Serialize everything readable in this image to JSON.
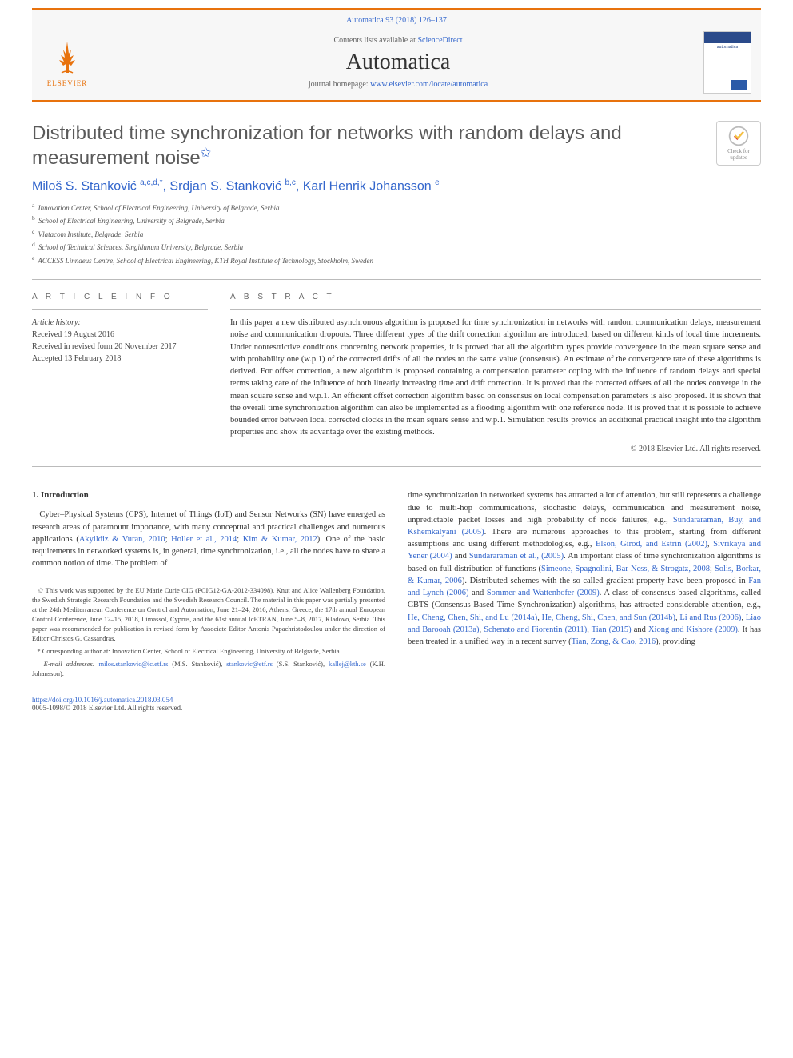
{
  "header": {
    "journal_ref": "Automatica 93 (2018) 126–137",
    "contents_prefix": "Contents lists available at ",
    "contents_link": "ScienceDirect",
    "journal_name": "Automatica",
    "homepage_prefix": "journal homepage: ",
    "homepage_link": "www.elsevier.com/locate/automatica",
    "elsevier_label": "ELSEVIER",
    "thumb_title": "automatica",
    "colors": {
      "accent": "#e8720d",
      "link": "#3366cc",
      "band_bg": "#f7f7f7"
    }
  },
  "crossmark": {
    "line1": "Check for",
    "line2": "updates"
  },
  "paper": {
    "title": "Distributed time synchronization for networks with random delays and measurement noise",
    "star": "✩",
    "authors_html": "Miloš S. Stanković <sup>a,c,d,*</sup>, Srdjan S. Stanković <sup>b,c</sup>, Karl Henrik Johansson <sup>e</sup>",
    "authors": [
      {
        "name": "Miloš S. Stanković",
        "marks": "a,c,d,*"
      },
      {
        "name": "Srdjan S. Stanković",
        "marks": "b,c"
      },
      {
        "name": "Karl Henrik Johansson",
        "marks": "e"
      }
    ],
    "affiliations": [
      {
        "mark": "a",
        "text": "Innovation Center, School of Electrical Engineering, University of Belgrade, Serbia"
      },
      {
        "mark": "b",
        "text": "School of Electrical Engineering, University of Belgrade, Serbia"
      },
      {
        "mark": "c",
        "text": "Vlatacom Institute, Belgrade, Serbia"
      },
      {
        "mark": "d",
        "text": "School of Technical Sciences, Singidunum University, Belgrade, Serbia"
      },
      {
        "mark": "e",
        "text": "ACCESS Linnaeus Centre, School of Electrical Engineering, KTH Royal Institute of Technology, Stockholm, Sweden"
      }
    ]
  },
  "info": {
    "label": "A R T I C L E   I N F O",
    "history_label": "Article history:",
    "received": "Received 19 August 2016",
    "revised": "Received in revised form 20 November 2017",
    "accepted": "Accepted 13 February 2018"
  },
  "abstract": {
    "label": "A B S T R A C T",
    "text": "In this paper a new distributed asynchronous algorithm is proposed for time synchronization in networks with random communication delays, measurement noise and communication dropouts. Three different types of the drift correction algorithm are introduced, based on different kinds of local time increments. Under nonrestrictive conditions concerning network properties, it is proved that all the algorithm types provide convergence in the mean square sense and with probability one (w.p.1) of the corrected drifts of all the nodes to the same value (consensus). An estimate of the convergence rate of these algorithms is derived. For offset correction, a new algorithm is proposed containing a compensation parameter coping with the influence of random delays and special terms taking care of the influence of both linearly increasing time and drift correction. It is proved that the corrected offsets of all the nodes converge in the mean square sense and w.p.1. An efficient offset correction algorithm based on consensus on local compensation parameters is also proposed. It is shown that the overall time synchronization algorithm can also be implemented as a flooding algorithm with one reference node. It is proved that it is possible to achieve bounded error between local corrected clocks in the mean square sense and w.p.1. Simulation results provide an additional practical insight into the algorithm properties and show its advantage over the existing methods.",
    "copyright": "© 2018 Elsevier Ltd. All rights reserved."
  },
  "body": {
    "sec1_head": "1. Introduction",
    "col1_p1_pre": "Cyber–Physical Systems (CPS), Internet of Things (IoT) and Sensor Networks (SN) have emerged as research areas of paramount importance, with many conceptual and practical challenges and numerous applications (",
    "col1_cite1": "Akyildiz & Vuran, 2010",
    "col1_p1_mid1": "; ",
    "col1_cite2": "Holler et al., 2014",
    "col1_p1_mid2": "; ",
    "col1_cite3": "Kim & Kumar, 2012",
    "col1_p1_post": "). One of the basic requirements in networked systems is, in general, time synchronization, i.e., all the nodes have to share a common notion of time. The problem of",
    "col2_p1": "time synchronization in networked systems has attracted a lot of attention, but still represents a challenge due to multi-hop communications, stochastic delays, communication and measurement noise, unpredictable packet losses and high probability of node failures, e.g., ",
    "col2_cite1": "Sundararaman, Buy, and Kshemkalyani (2005)",
    "col2_p2": ". There are numerous approaches to this problem, starting from different assumptions and using different methodologies, e.g., ",
    "col2_cite2": "Elson, Girod, and Estrin (2002)",
    "col2_p3": ", ",
    "col2_cite3": "Sivrikaya and Yener (2004)",
    "col2_p4": " and ",
    "col2_cite4": "Sundararaman et al., (2005)",
    "col2_p5": ". An important class of time synchronization algorithms is based on full distribution of functions (",
    "col2_cite5": "Simeone, Spagnolini, Bar-Ness, & Strogatz, 2008",
    "col2_p6": "; ",
    "col2_cite6": "Solis, Borkar, & Kumar, 2006",
    "col2_p7": "). Distributed schemes with the so-called gradient property have been proposed in ",
    "col2_cite7": "Fan and Lynch (2006)",
    "col2_p8": " and ",
    "col2_cite8": "Sommer and Wattenhofer (2009)",
    "col2_p9": ". A class of consensus based algorithms, called CBTS (Consensus-Based Time Synchronization) algorithms, has attracted considerable attention, e.g., ",
    "col2_cite9": "He, Cheng, Chen, Shi, and Lu (2014a)",
    "col2_p10": ", ",
    "col2_cite10": "He, Cheng, Shi, Chen, and Sun (2014b)",
    "col2_p11": ", ",
    "col2_cite11": "Li and Rus (2006)",
    "col2_p12": ", ",
    "col2_cite12": "Liao and Barooah (2013a)",
    "col2_p13": ", ",
    "col2_cite13": "Schenato and Fiorentin (2011)",
    "col2_p14": ", ",
    "col2_cite14": "Tian (2015)",
    "col2_p15": " and ",
    "col2_cite15": "Xiong and Kishore (2009)",
    "col2_p16": ". It has been treated in a unified way in a recent survey (",
    "col2_cite16": "Tian, Zong, & Cao, 2016",
    "col2_p17": "), providing"
  },
  "footnotes": {
    "funding_mark": "✩",
    "funding": " This work was supported by the EU Marie Curie CIG (PCIG12-GA-2012-334098), Knut and Alice Wallenberg Foundation, the Swedish Strategic Research Foundation and the Swedish Research Council. The material in this paper was partially presented at the 24th Mediterranean Conference on Control and Automation, June 21–24, 2016, Athens, Greece, the 17th annual European Control Conference, June 12–15, 2018, Limassol, Cyprus, and the 61st annual IcETRAN, June 5–8, 2017, Kladovo, Serbia. This paper was recommended for publication in revised form by Associate Editor Antonis Papachristodoulou under the direction of Editor Christos G. Cassandras.",
    "corr_mark": "*",
    "corr": " Corresponding author at: Innovation Center, School of Electrical Engineering, University of Belgrade, Serbia.",
    "email_label": "E-mail addresses: ",
    "email1": "milos.stankovic@ic.etf.rs",
    "email1_who": " (M.S. Stanković), ",
    "email2": "stankovic@etf.rs",
    "email2_who": " (S.S. Stanković), ",
    "email3": "kallej@kth.se",
    "email3_who": " (K.H. Johansson)."
  },
  "footer": {
    "doi": "https://doi.org/10.1016/j.automatica.2018.03.054",
    "issn_line": "0005-1098/© 2018 Elsevier Ltd. All rights reserved."
  }
}
